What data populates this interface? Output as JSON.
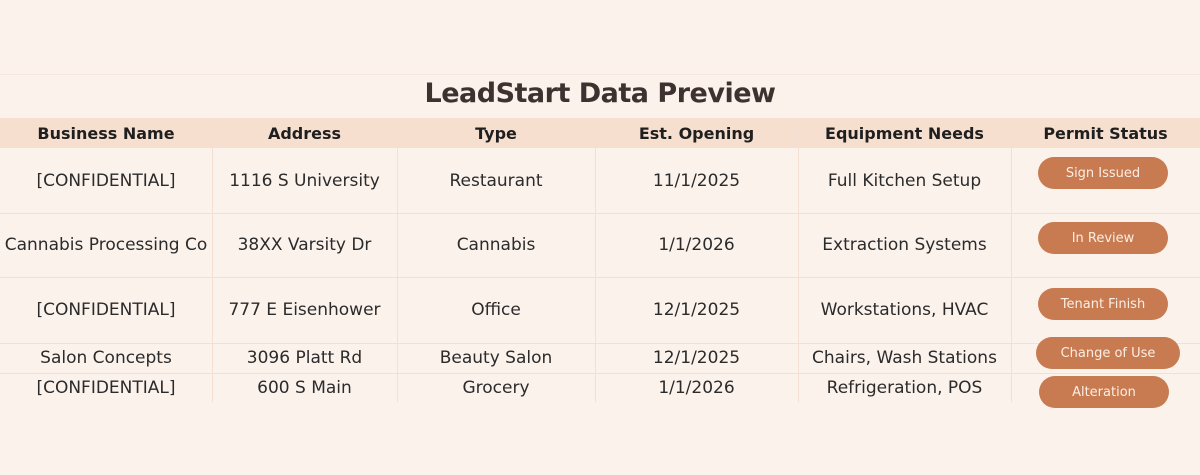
{
  "title": "LeadStart Data Preview",
  "columns": [
    "Business Name",
    "Address",
    "Type",
    "Est. Opening",
    "Equipment Needs",
    "Permit Status"
  ],
  "rows": [
    [
      "[CONFIDENTIAL]",
      "1116 S University",
      "Restaurant",
      "11/1/2025",
      "Full Kitchen Setup",
      "Sign Issued"
    ],
    [
      "Cannabis Processing Co",
      "38XX Varsity Dr",
      "Cannabis",
      "1/1/2026",
      "Extraction Systems",
      "In Review"
    ],
    [
      "[CONFIDENTIAL]",
      "777 E Eisenhower",
      "Office",
      "12/1/2025",
      "Workstations, HVAC",
      "Tenant Finish"
    ],
    [
      "Salon Concepts",
      "3096 Platt Rd",
      "Beauty Salon",
      "12/1/2025",
      "Chairs, Wash Stations",
      "Change of Use"
    ],
    [
      "[CONFIDENTIAL]",
      "600 S Main",
      "Grocery",
      "1/1/2026",
      "Refrigeration, POS",
      "Alteration"
    ]
  ],
  "colors": {
    "background": "#fbf2ec",
    "header": "#f6dfcf",
    "status_pill": "#c87b50"
  }
}
